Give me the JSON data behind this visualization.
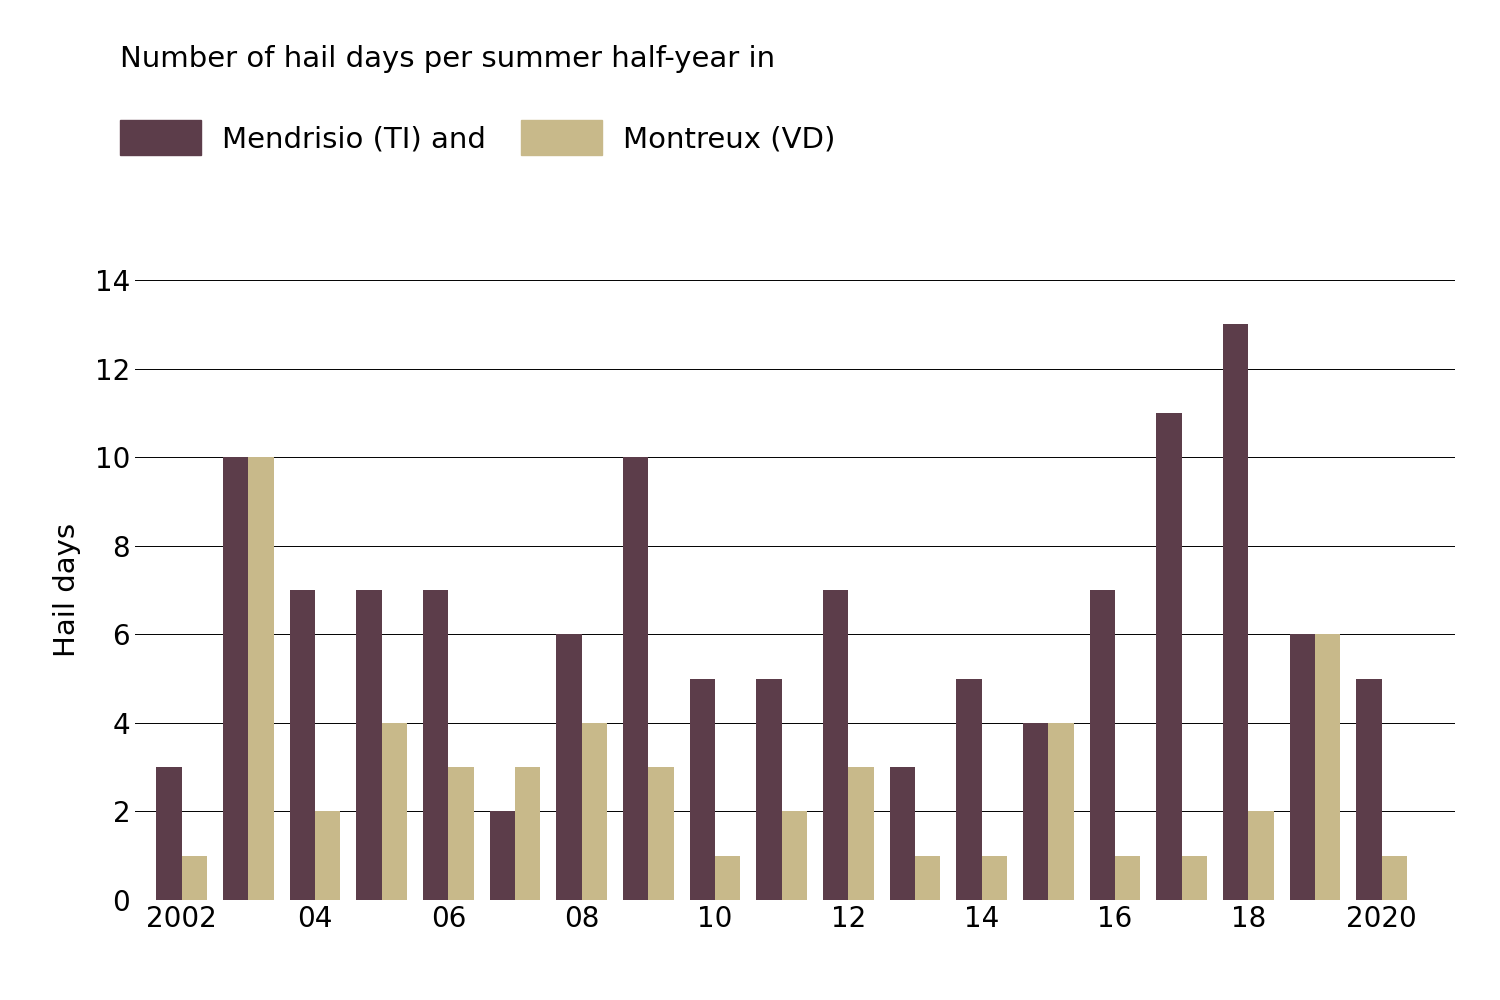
{
  "years": [
    2002,
    2003,
    2004,
    2005,
    2006,
    2007,
    2008,
    2009,
    2010,
    2011,
    2012,
    2013,
    2014,
    2015,
    2016,
    2017,
    2018,
    2019,
    2020
  ],
  "mendrisio": [
    3,
    10,
    7,
    7,
    7,
    2,
    6,
    10,
    5,
    5,
    7,
    3,
    5,
    4,
    7,
    11,
    13,
    6,
    5
  ],
  "montreux": [
    1,
    10,
    2,
    4,
    3,
    3,
    4,
    3,
    1,
    2,
    3,
    1,
    1,
    4,
    1,
    1,
    2,
    6,
    1
  ],
  "color_mendrisio": "#5c3d4a",
  "color_montreux": "#c8b98a",
  "title": "Number of hail days per summer half-year in",
  "label_mendrisio": "Mendrisio (TI) and",
  "label_montreux": "Montreux (VD)",
  "ylabel": "Hail days",
  "ylim": [
    0,
    14
  ],
  "yticks": [
    0,
    2,
    4,
    6,
    8,
    10,
    12,
    14
  ],
  "xtick_labels": [
    "2002",
    "04",
    "06",
    "08",
    "10",
    "12",
    "14",
    "16",
    "18",
    "2020"
  ],
  "xtick_positions": [
    2002,
    2004,
    2006,
    2008,
    2010,
    2012,
    2014,
    2016,
    2018,
    2020
  ],
  "bar_width": 0.38,
  "background_color": "#ffffff",
  "title_fontsize": 21,
  "legend_fontsize": 21,
  "tick_fontsize": 20,
  "ylabel_fontsize": 21
}
